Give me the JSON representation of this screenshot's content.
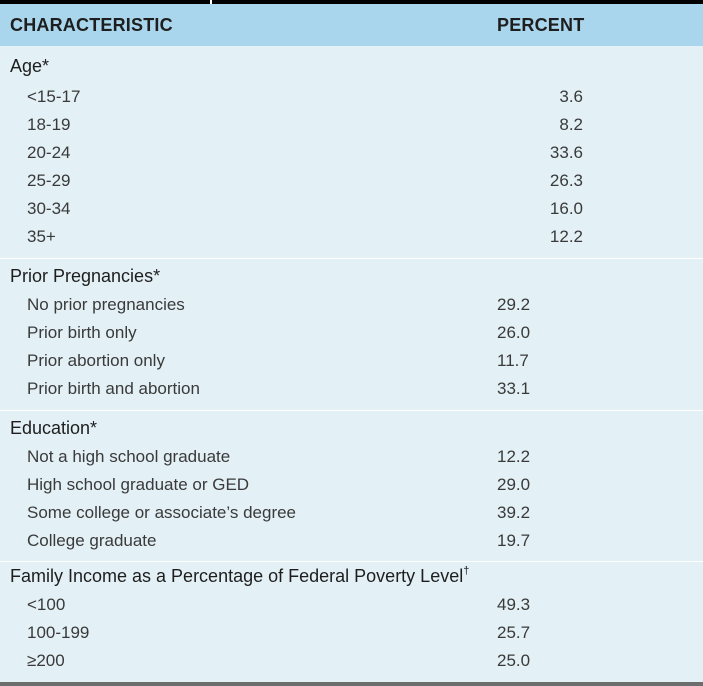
{
  "header": {
    "characteristic": "CHARACTERISTIC",
    "percent": "PERCENT"
  },
  "groups": [
    {
      "title": "Age*",
      "rows": [
        {
          "label": "<15-17",
          "value": "3.6"
        },
        {
          "label": "18-19",
          "value": "8.2"
        },
        {
          "label": "20-24",
          "value": "33.6"
        },
        {
          "label": "25-29",
          "value": "26.3"
        },
        {
          "label": "30-34",
          "value": "16.0"
        },
        {
          "label": "35+",
          "value": "12.2"
        }
      ]
    },
    {
      "title": "Prior Pregnancies*",
      "rows": [
        {
          "label": "No prior pregnancies",
          "value": "29.2"
        },
        {
          "label": "Prior birth only",
          "value": "26.0"
        },
        {
          "label": "Prior abortion only",
          "value": "11.7"
        },
        {
          "label": "Prior birth and abortion",
          "value": "33.1"
        }
      ]
    },
    {
      "title": "Education*",
      "rows": [
        {
          "label": "Not a high school graduate",
          "value": "12.2"
        },
        {
          "label": "High school graduate or GED",
          "value": "29.0"
        },
        {
          "label": "Some college or associate’s degree",
          "value": "39.2"
        },
        {
          "label": "College graduate",
          "value": "19.7"
        }
      ]
    },
    {
      "title": "Family Income as a Percentage of Federal Poverty Level",
      "title_mark": "†",
      "rows": [
        {
          "label": "<100",
          "value": "49.3"
        },
        {
          "label": "100-199",
          "value": "25.7"
        },
        {
          "label": "≥200",
          "value": "25.0"
        }
      ]
    }
  ]
}
